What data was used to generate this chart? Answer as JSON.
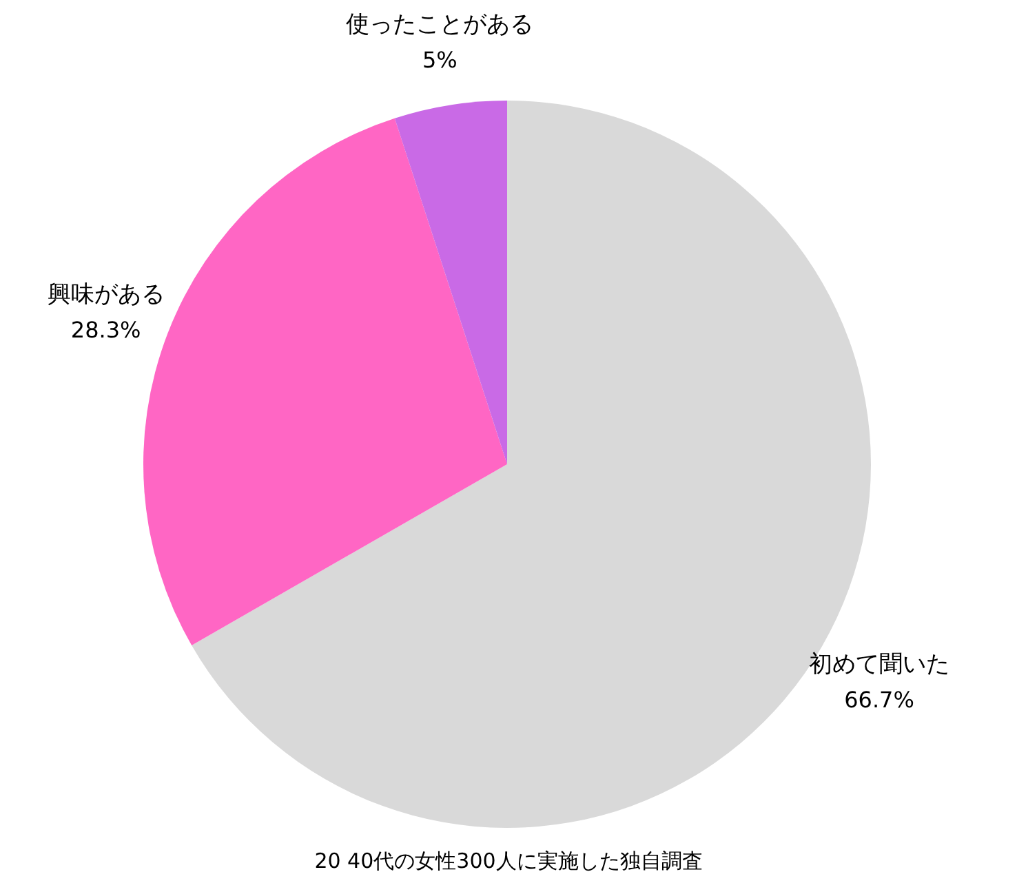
{
  "chart_data": {
    "type": "pie",
    "categories": [
      "初めて聞いた",
      "興味がある",
      "使ったことがある"
    ],
    "values": [
      66.7,
      28.3,
      5
    ],
    "colors": [
      "#d9d9d9",
      "#ff66c4",
      "#c96ae6"
    ],
    "value_labels": [
      "66.7%",
      "28.3%",
      "5%"
    ],
    "legend": false,
    "annotations": [
      "20 40代の女性300人に実施した独自調査"
    ]
  }
}
